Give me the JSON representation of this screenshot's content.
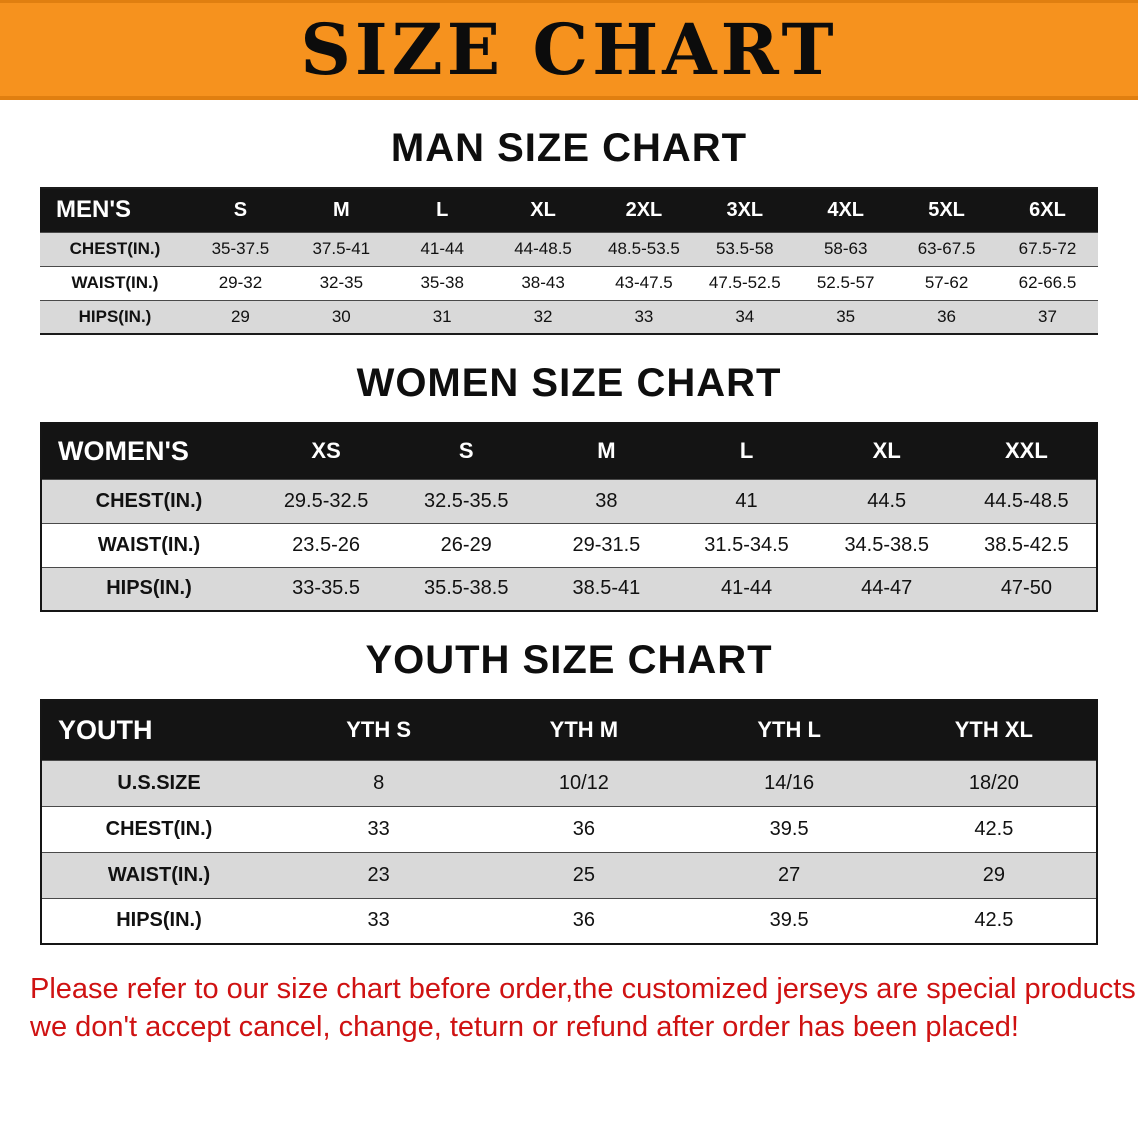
{
  "banner": {
    "title": "SIZE CHART"
  },
  "sections": [
    {
      "id": "men",
      "heading": "MAN SIZE CHART",
      "table": {
        "header": [
          "MEN'S",
          "S",
          "M",
          "L",
          "XL",
          "2XL",
          "3XL",
          "4XL",
          "5XL",
          "6XL"
        ],
        "rows": [
          [
            "CHEST(IN.)",
            "35-37.5",
            "37.5-41",
            "41-44",
            "44-48.5",
            "48.5-53.5",
            "53.5-58",
            "58-63",
            "63-67.5",
            "67.5-72"
          ],
          [
            "WAIST(IN.)",
            "29-32",
            "32-35",
            "35-38",
            "38-43",
            "43-47.5",
            "47.5-52.5",
            "52.5-57",
            "57-62",
            "62-66.5"
          ],
          [
            "HIPS(IN.)",
            "29",
            "30",
            "31",
            "32",
            "33",
            "34",
            "35",
            "36",
            "37"
          ]
        ]
      }
    },
    {
      "id": "women",
      "heading": "WOMEN SIZE CHART",
      "table": {
        "header": [
          "WOMEN'S",
          "XS",
          "S",
          "M",
          "L",
          "XL",
          "XXL"
        ],
        "rows": [
          [
            "CHEST(IN.)",
            "29.5-32.5",
            "32.5-35.5",
            "38",
            "41",
            "44.5",
            "44.5-48.5"
          ],
          [
            "WAIST(IN.)",
            "23.5-26",
            "26-29",
            "29-31.5",
            "31.5-34.5",
            "34.5-38.5",
            "38.5-42.5"
          ],
          [
            "HIPS(IN.)",
            "33-35.5",
            "35.5-38.5",
            "38.5-41",
            "41-44",
            "44-47",
            "47-50"
          ]
        ]
      }
    },
    {
      "id": "youth",
      "heading": "YOUTH SIZE CHART",
      "table": {
        "header": [
          "YOUTH",
          "YTH S",
          "YTH M",
          "YTH L",
          "YTH XL"
        ],
        "rows": [
          [
            "U.S.SIZE",
            "8",
            "10/12",
            "14/16",
            "18/20"
          ],
          [
            "CHEST(IN.)",
            "33",
            "36",
            "39.5",
            "42.5"
          ],
          [
            "WAIST(IN.)",
            "23",
            "25",
            "27",
            "29"
          ],
          [
            "HIPS(IN.)",
            "33",
            "36",
            "39.5",
            "42.5"
          ]
        ]
      }
    }
  ],
  "disclaimer": {
    "line1": "Please refer to our size chart before order,the customized jerseys are special products,",
    "line2": "we don't accept cancel, change, teturn or refund after order has been placed!"
  },
  "colors": {
    "banner-orange": "#f6921e",
    "banner-orange-dark": "#e07f10",
    "table-header-bg": "#141414",
    "row-gray": "#d9d9d9",
    "disclaimer-red": "#cf1212",
    "text-black": "#111111"
  }
}
